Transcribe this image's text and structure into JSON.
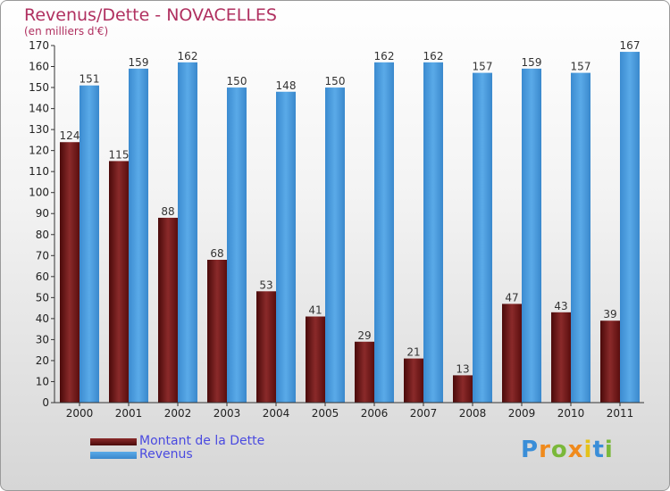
{
  "chart_data": {
    "type": "bar",
    "title": "Revenus/Dette - NOVACELLES",
    "subtitle": "(en milliers d'€)",
    "categories": [
      "2000",
      "2001",
      "2002",
      "2003",
      "2004",
      "2005",
      "2006",
      "2007",
      "2008",
      "2009",
      "2010",
      "2011"
    ],
    "series": [
      {
        "name": "Montant de la Dette",
        "color": "#7a1c1c",
        "values": [
          124,
          115,
          88,
          68,
          53,
          41,
          29,
          21,
          13,
          47,
          43,
          39
        ]
      },
      {
        "name": "Revenus",
        "color": "#4a9ee0",
        "values": [
          151,
          159,
          162,
          150,
          148,
          150,
          162,
          162,
          157,
          159,
          157,
          167
        ]
      }
    ],
    "ylim": [
      0,
      170
    ],
    "yticks": [
      0,
      10,
      20,
      30,
      40,
      50,
      60,
      70,
      80,
      90,
      100,
      110,
      120,
      130,
      140,
      150,
      160,
      170
    ],
    "grid": false,
    "legend_position": "bottom-left"
  },
  "logo": {
    "letters": [
      "P",
      "r",
      "o",
      "x",
      "i",
      "t",
      "i"
    ]
  }
}
